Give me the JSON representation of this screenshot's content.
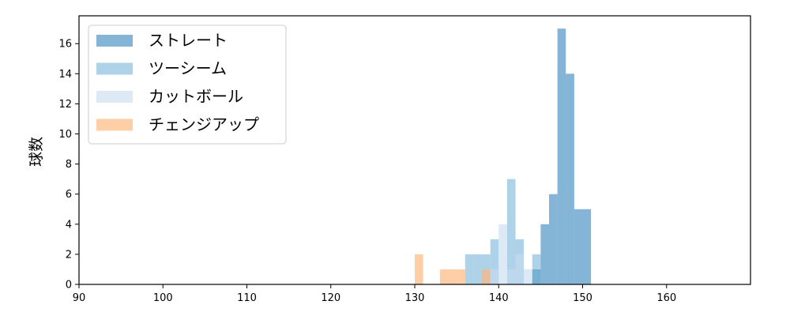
{
  "chart_data": {
    "type": "histogram",
    "title": "",
    "xlabel": "",
    "ylabel": "球数",
    "xlim": [
      90,
      170
    ],
    "ylim": [
      0,
      17.85
    ],
    "xticks": [
      90,
      100,
      110,
      120,
      130,
      140,
      150,
      160
    ],
    "yticks": [
      0,
      2,
      4,
      6,
      8,
      10,
      12,
      14,
      16
    ],
    "bin_width": 1,
    "grid": false,
    "legend_position": "top-left",
    "series": [
      {
        "name": "ストレート",
        "color": "#1f77b4",
        "opacity": 0.55,
        "bins": [
          [
            144,
            1
          ],
          [
            145,
            4
          ],
          [
            146,
            6
          ],
          [
            147,
            17
          ],
          [
            148,
            14
          ],
          [
            149,
            5
          ],
          [
            150,
            5
          ]
        ]
      },
      {
        "name": "ツーシーム",
        "color": "#6baed6",
        "opacity": 0.55,
        "bins": [
          [
            136,
            2
          ],
          [
            137,
            2
          ],
          [
            138,
            2
          ],
          [
            139,
            3
          ],
          [
            141,
            7
          ],
          [
            142,
            3
          ],
          [
            144,
            2
          ]
        ]
      },
      {
        "name": "カットボール",
        "color": "#c6dbef",
        "opacity": 0.6,
        "bins": [
          [
            138,
            1
          ],
          [
            139,
            1
          ],
          [
            140,
            4
          ],
          [
            141,
            1
          ],
          [
            142,
            2
          ],
          [
            143,
            1
          ]
        ]
      },
      {
        "name": "チェンジアップ",
        "color": "#fdae6b",
        "opacity": 0.6,
        "bins": [
          [
            130,
            2
          ],
          [
            133,
            1
          ],
          [
            134,
            1
          ],
          [
            135,
            1
          ],
          [
            138,
            1
          ]
        ]
      }
    ]
  }
}
